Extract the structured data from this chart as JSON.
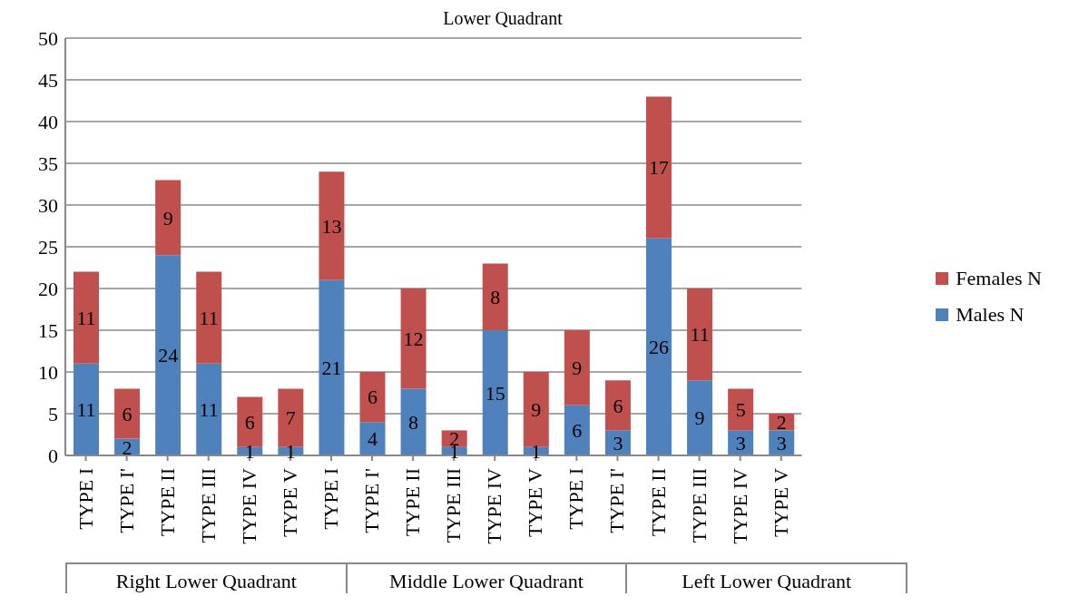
{
  "chart_data": {
    "type": "bar",
    "title": "Lower Quadrant",
    "stacked": true,
    "grid": "y",
    "legend": "right",
    "data_labels": true,
    "categories": [
      "TYPE I",
      "TYPE I'",
      "TYPE II",
      "TYPE III",
      "TYPE IV",
      "TYPE V",
      "TYPE I",
      "TYPE I'",
      "TYPE II",
      "TYPE III",
      "TYPE IV",
      "TYPE V",
      "TYPE I",
      "TYPE I'",
      "TYPE II",
      "TYPE III",
      "TYPE IV",
      "TYPE V"
    ],
    "annotations": [
      "Right Lower Quadrant",
      "Middle Lower Quadrant",
      "Left Lower Quadrant"
    ],
    "ylim": [
      0,
      50
    ],
    "yticks": [
      0,
      5,
      10,
      15,
      20,
      25,
      30,
      35,
      40,
      45,
      50
    ],
    "series": [
      {
        "name": "Males N",
        "color": "#4f81bd",
        "values": [
          11,
          2,
          24,
          11,
          1,
          1,
          21,
          4,
          8,
          1,
          15,
          1,
          6,
          3,
          26,
          9,
          3,
          3
        ]
      },
      {
        "name": "Females N",
        "color": "#c0504d",
        "values": [
          11,
          6,
          9,
          11,
          6,
          7,
          13,
          6,
          12,
          2,
          8,
          9,
          9,
          6,
          17,
          11,
          5,
          2
        ]
      }
    ]
  }
}
